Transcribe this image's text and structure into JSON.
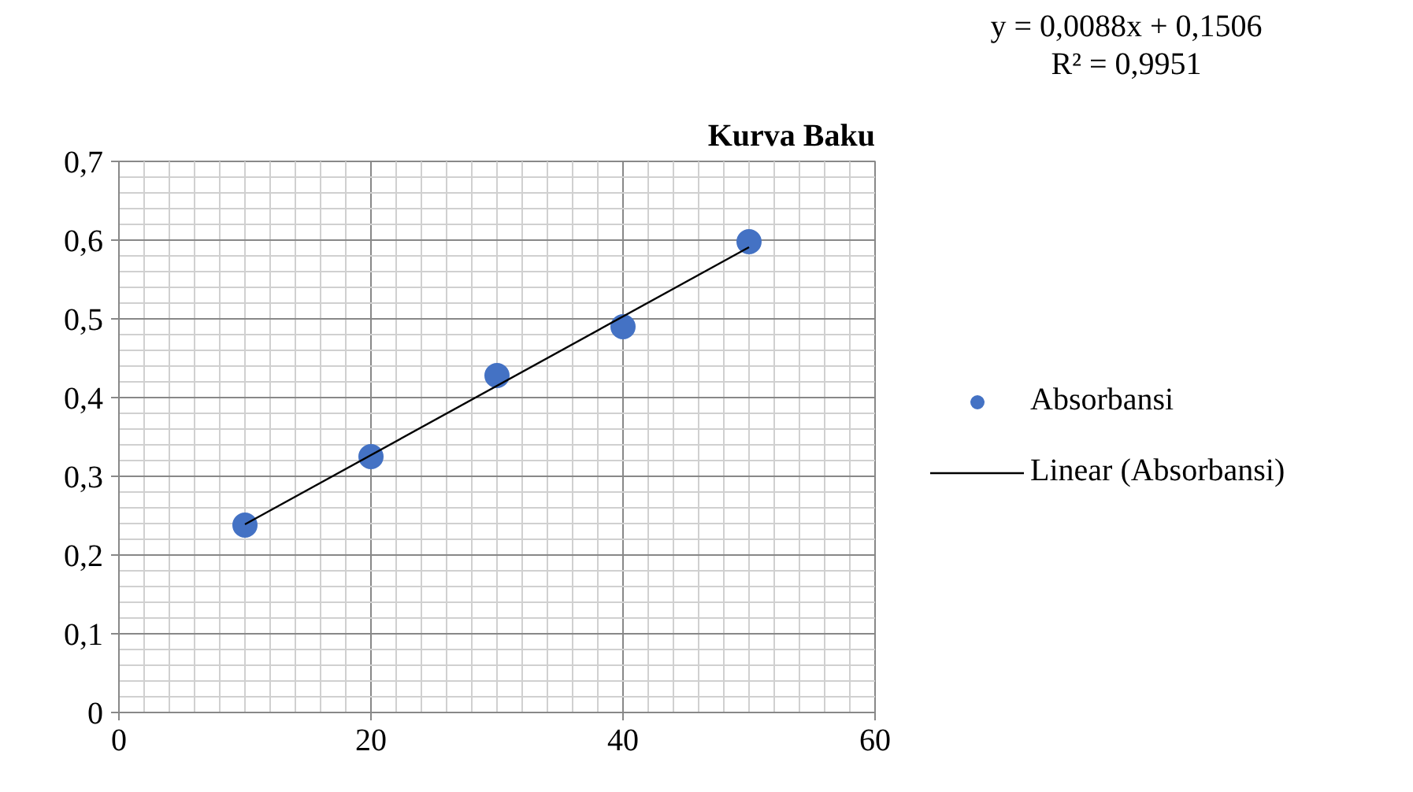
{
  "chart_data": {
    "type": "scatter",
    "title": "Kurva Baku",
    "x": [
      10,
      20,
      30,
      40,
      50
    ],
    "series": [
      {
        "name": "Absorbansi",
        "color": "#4472c4",
        "marker": "circle",
        "values": [
          0.238,
          0.325,
          0.428,
          0.49,
          0.598
        ]
      },
      {
        "name": "Linear (Absorbansi)",
        "type": "line",
        "color": "#000000",
        "x": [
          10,
          50
        ],
        "values": [
          0.239,
          0.591
        ]
      }
    ],
    "annotations": [
      "y = 0,0088x + 0,1506",
      "R² = 0,9951"
    ],
    "xlim": [
      0,
      60
    ],
    "xticks": [
      0,
      20,
      40,
      60
    ],
    "ylim": [
      0,
      0.7
    ],
    "yticks": [
      {
        "value": 0,
        "label": "0"
      },
      {
        "value": 0.1,
        "label": "0,1"
      },
      {
        "value": 0.2,
        "label": "0,2"
      },
      {
        "value": 0.3,
        "label": "0,3"
      },
      {
        "value": 0.4,
        "label": "0,4"
      },
      {
        "value": 0.5,
        "label": "0,5"
      },
      {
        "value": 0.6,
        "label": "0,6"
      },
      {
        "value": 0.7,
        "label": "0,7"
      }
    ],
    "grid": true,
    "legend": "right"
  }
}
